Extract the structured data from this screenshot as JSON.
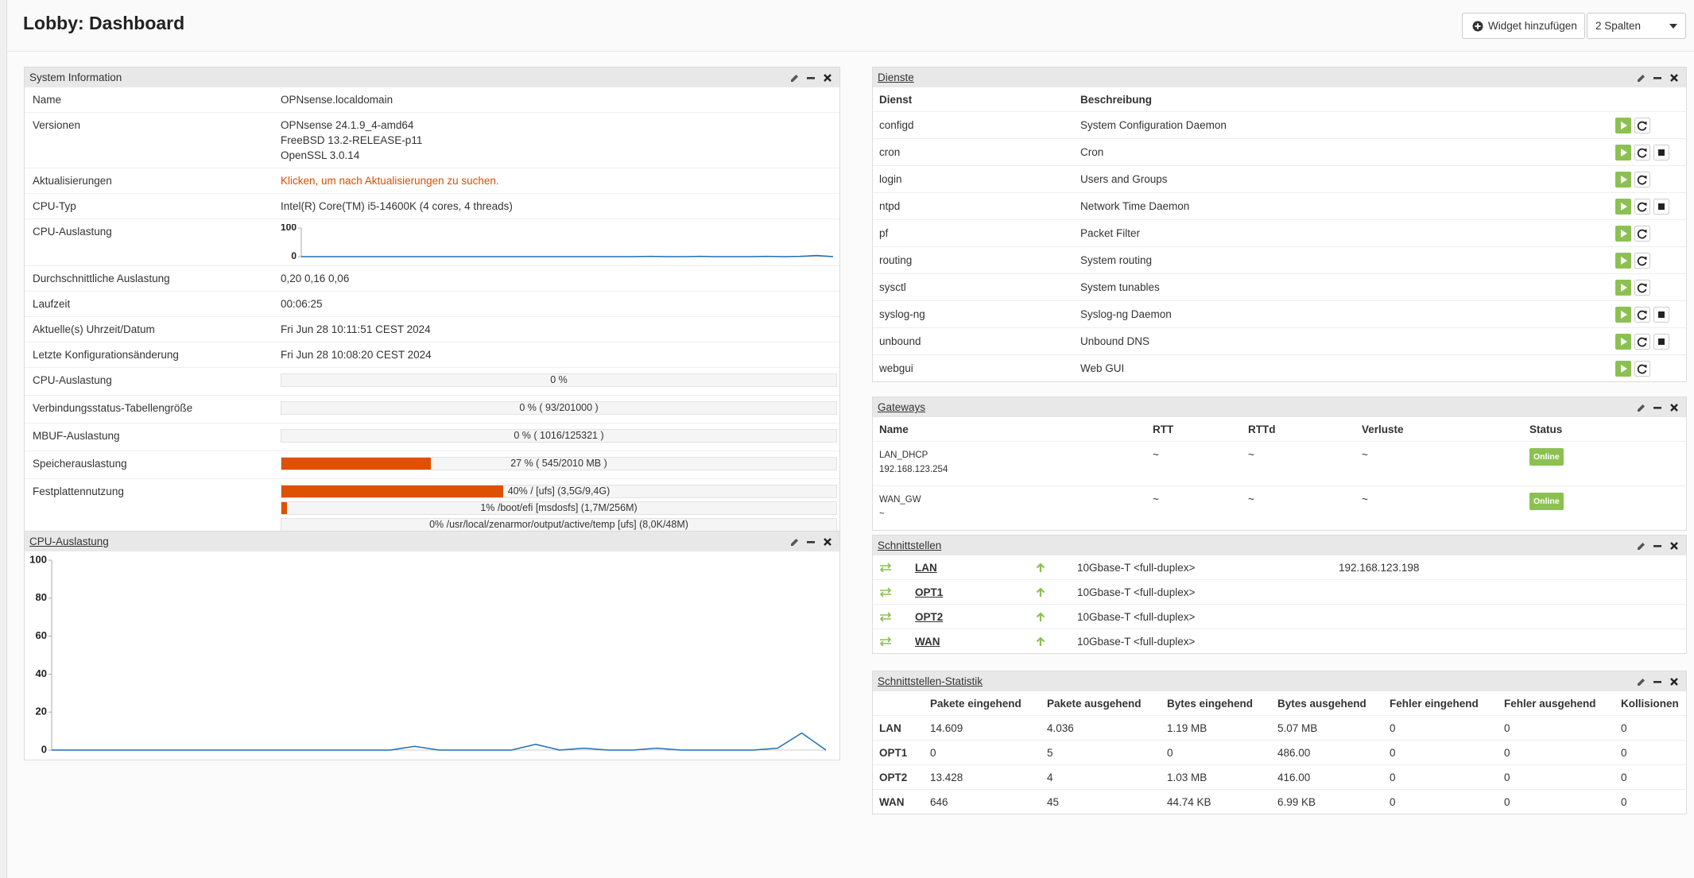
{
  "header": {
    "title": "Lobby: Dashboard",
    "add_widget": "Widget hinzufügen",
    "columns": "2 Spalten"
  },
  "system_info": {
    "title": "System Information",
    "rows": [
      {
        "label": "Name",
        "lines": [
          "OPNsense.localdomain"
        ]
      },
      {
        "label": "Versionen",
        "lines": [
          "OPNsense 24.1.9_4-amd64",
          "FreeBSD 13.2-RELEASE-p11",
          "OpenSSL 3.0.14"
        ]
      },
      {
        "label": "Aktualisierungen",
        "link": "Klicken, um nach Aktualisierungen zu suchen."
      },
      {
        "label": "CPU-Typ",
        "lines": [
          "Intel(R) Core(TM) i5-14600K (4 cores, 4 threads)"
        ]
      },
      {
        "label": "CPU-Auslastung",
        "chart": {
          "type": "line",
          "ylim": [
            0,
            100
          ],
          "yticks": [
            0,
            100
          ],
          "values": [
            0,
            0,
            0,
            0,
            0,
            0,
            0,
            0,
            0,
            0,
            0,
            0,
            0,
            0,
            0,
            0,
            0,
            0,
            0,
            0,
            0,
            1,
            0,
            0,
            1,
            0,
            0,
            0,
            1,
            0,
            1,
            4,
            0
          ]
        }
      },
      {
        "label": "Durchschnittliche Auslastung",
        "lines": [
          "0,20 0,16 0,06"
        ]
      },
      {
        "label": "Laufzeit",
        "lines": [
          "00:06:25"
        ]
      },
      {
        "label": "Aktuelle(s) Uhrzeit/Datum",
        "lines": [
          "Fri Jun 28 10:11:51 CEST 2024"
        ]
      },
      {
        "label": "Letzte Konfigurationsänderung",
        "lines": [
          "Fri Jun 28 10:08:20 CEST 2024"
        ]
      },
      {
        "label": "CPU-Auslastung",
        "bars": [
          {
            "percent": 0,
            "label": "0 %"
          }
        ]
      },
      {
        "label": "Verbindungsstatus-Tabellengröße",
        "bars": [
          {
            "percent": 0,
            "label": "0 % ( 93/201000 )"
          }
        ]
      },
      {
        "label": "MBUF-Auslastung",
        "bars": [
          {
            "percent": 0,
            "label": "0 % ( 1016/125321 )"
          }
        ]
      },
      {
        "label": "Speicherauslastung",
        "bars": [
          {
            "percent": 27,
            "label": "27 % ( 545/2010 MB )"
          }
        ]
      },
      {
        "label": "Festplattennutzung",
        "bars": [
          {
            "percent": 40,
            "label": "40% / [ufs] (3,5G/9,4G)"
          },
          {
            "percent": 1,
            "label": "1% /boot/efi [msdosfs] (1,7M/256M)"
          },
          {
            "percent": 0,
            "label": "0% /usr/local/zenarmor/output/active/temp [ufs] (8,0K/48M)"
          }
        ]
      }
    ]
  },
  "cpu_chart": {
    "type": "line",
    "title": "CPU-Auslastung",
    "ylim": [
      0,
      100
    ],
    "yticks": [
      0,
      20,
      40,
      60,
      80,
      100
    ],
    "values": [
      0,
      0,
      0,
      0,
      0,
      0,
      0,
      0,
      0,
      0,
      0,
      0,
      0,
      0,
      0,
      2,
      0,
      0,
      0,
      0,
      3,
      0,
      1,
      0,
      0,
      1,
      0,
      0,
      0,
      0,
      1,
      9,
      0
    ]
  },
  "services": {
    "title": "Dienste",
    "columns": [
      "Dienst",
      "Beschreibung"
    ],
    "rows": [
      {
        "name": "configd",
        "description": "System Configuration Daemon",
        "stop": false
      },
      {
        "name": "cron",
        "description": "Cron",
        "stop": true
      },
      {
        "name": "login",
        "description": "Users and Groups",
        "stop": false
      },
      {
        "name": "ntpd",
        "description": "Network Time Daemon",
        "stop": true
      },
      {
        "name": "pf",
        "description": "Packet Filter",
        "stop": false
      },
      {
        "name": "routing",
        "description": "System routing",
        "stop": false
      },
      {
        "name": "sysctl",
        "description": "System tunables",
        "stop": false
      },
      {
        "name": "syslog-ng",
        "description": "Syslog-ng Daemon",
        "stop": true
      },
      {
        "name": "unbound",
        "description": "Unbound DNS",
        "stop": true
      },
      {
        "name": "webgui",
        "description": "Web GUI",
        "stop": false
      }
    ]
  },
  "gateways": {
    "title": "Gateways",
    "columns": [
      "Name",
      "RTT",
      "RTTd",
      "Verluste",
      "Status"
    ],
    "rows": [
      {
        "name": "LAN_DHCP",
        "address": "192.168.123.254",
        "rtt": "~",
        "rttd": "~",
        "loss": "~",
        "status": "Online"
      },
      {
        "name": "WAN_GW",
        "address": "~",
        "rtt": "~",
        "rttd": "~",
        "loss": "~",
        "status": "Online"
      }
    ]
  },
  "interfaces": {
    "title": "Schnittstellen",
    "rows": [
      {
        "name": "LAN",
        "media": "10Gbase-T <full-duplex>",
        "ip": "192.168.123.198"
      },
      {
        "name": "OPT1",
        "media": "10Gbase-T <full-duplex>"
      },
      {
        "name": "OPT2",
        "media": "10Gbase-T <full-duplex>"
      },
      {
        "name": "WAN",
        "media": "10Gbase-T <full-duplex>"
      }
    ]
  },
  "interface_stats": {
    "title": "Schnittstellen-Statistik",
    "columns": [
      "Pakete eingehend",
      "Pakete ausgehend",
      "Bytes eingehend",
      "Bytes ausgehend",
      "Fehler eingehend",
      "Fehler ausgehend",
      "Kollisionen"
    ],
    "rows": [
      {
        "name": "LAN",
        "values": [
          "14.609",
          "4.036",
          "1.19 MB",
          "5.07 MB",
          "0",
          "0",
          "0"
        ]
      },
      {
        "name": "OPT1",
        "values": [
          "0",
          "5",
          "0",
          "486.00",
          "0",
          "0",
          "0"
        ]
      },
      {
        "name": "OPT2",
        "values": [
          "13.428",
          "4",
          "1.03 MB",
          "416.00",
          "0",
          "0",
          "0"
        ]
      },
      {
        "name": "WAN",
        "values": [
          "646",
          "45",
          "44.74 KB",
          "6.99 KB",
          "0",
          "0",
          "0"
        ]
      }
    ]
  }
}
